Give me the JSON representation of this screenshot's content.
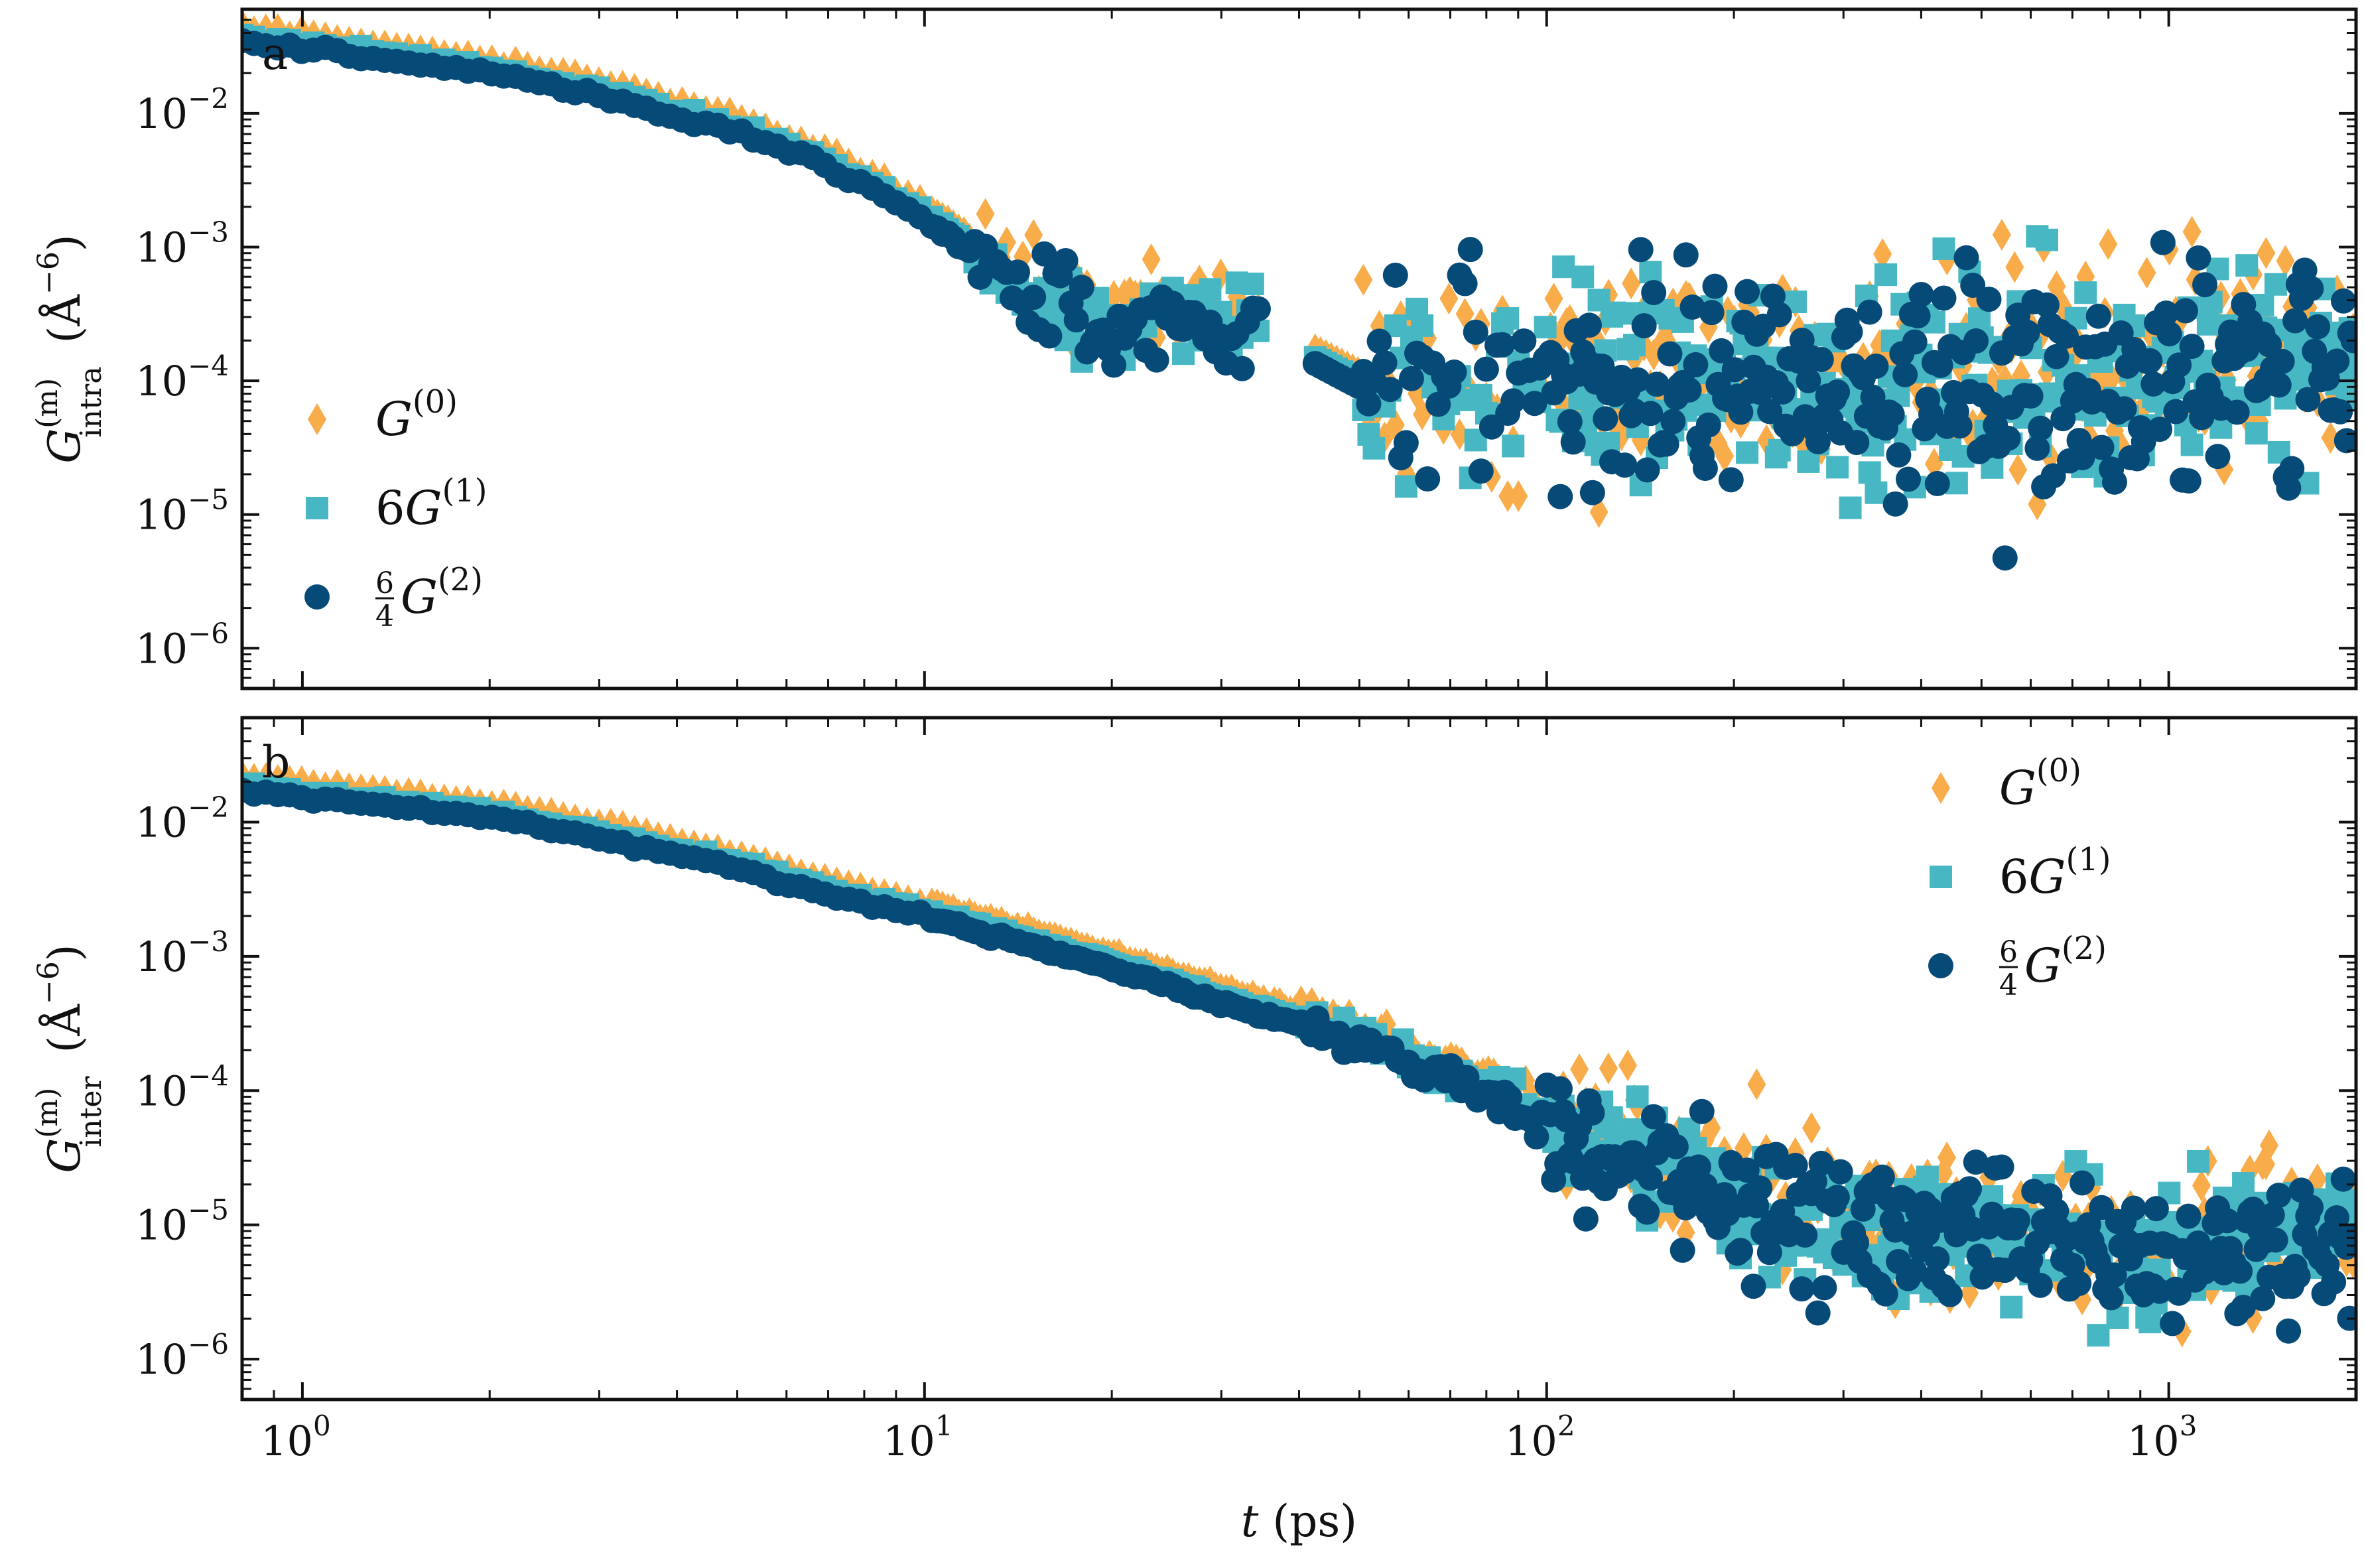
{
  "colors": {
    "G0": "#F9AC4A",
    "G1": "#47B8C3",
    "G2": "#064A78"
  },
  "chart_data": [
    {
      "type": "scatter",
      "panel": "a",
      "ylabel_main": "G",
      "ylabel_sup": "(m)",
      "ylabel_sub": "intra",
      "ylabel_unit": "(Å",
      "ylabel_unit_sup": "−6",
      "ylabel_unit_close": ")",
      "xscale": "log",
      "yscale": "log",
      "xlim": [
        0.8,
        2000
      ],
      "ylim": [
        5e-07,
        0.06
      ],
      "legend": "middle-left",
      "series": [
        {
          "name": "G^(0)",
          "legend_main": "G",
          "legend_sup": "(0)",
          "legend_prefix": "",
          "marker": "diamond"
        },
        {
          "name": "6G^(1)",
          "legend_main": "G",
          "legend_sup": "(1)",
          "legend_prefix": "6",
          "marker": "square"
        },
        {
          "name": "6/4 G^(2)",
          "legend_main": "G",
          "legend_sup": "(2)",
          "legend_frac_num": "6",
          "legend_frac_den": "4",
          "marker": "circle"
        }
      ]
    },
    {
      "type": "scatter",
      "panel": "b",
      "ylabel_main": "G",
      "ylabel_sup": "(m)",
      "ylabel_sub": "inter",
      "ylabel_unit": "(Å",
      "ylabel_unit_sup": "−6",
      "ylabel_unit_close": ")",
      "xscale": "log",
      "yscale": "log",
      "xlim": [
        0.8,
        2000
      ],
      "ylim": [
        5e-07,
        0.06
      ],
      "legend": "top-right",
      "series": [
        {
          "name": "G^(0)",
          "legend_main": "G",
          "legend_sup": "(0)",
          "legend_prefix": "",
          "marker": "diamond"
        },
        {
          "name": "6G^(1)",
          "legend_main": "G",
          "legend_sup": "(1)",
          "legend_prefix": "6",
          "marker": "square"
        },
        {
          "name": "6/4 G^(2)",
          "legend_main": "G",
          "legend_sup": "(2)",
          "legend_frac_num": "6",
          "legend_frac_den": "4",
          "marker": "circle"
        }
      ]
    }
  ],
  "x_axis": {
    "label_var": "t",
    "label_unit": "(ps)",
    "ticks": [
      {
        "value": 1,
        "base": "10",
        "exp": "0"
      },
      {
        "value": 10,
        "base": "10",
        "exp": "1"
      },
      {
        "value": 100,
        "base": "10",
        "exp": "2"
      },
      {
        "value": 1000,
        "base": "10",
        "exp": "3"
      }
    ]
  },
  "y_ticks": [
    {
      "value": 0.01,
      "base": "10",
      "exp": "−2"
    },
    {
      "value": 0.001,
      "base": "10",
      "exp": "−3"
    },
    {
      "value": 0.0001,
      "base": "10",
      "exp": "−4"
    },
    {
      "value": 1e-05,
      "base": "10",
      "exp": "−5"
    },
    {
      "value": 1e-06,
      "base": "10",
      "exp": "−6"
    }
  ]
}
